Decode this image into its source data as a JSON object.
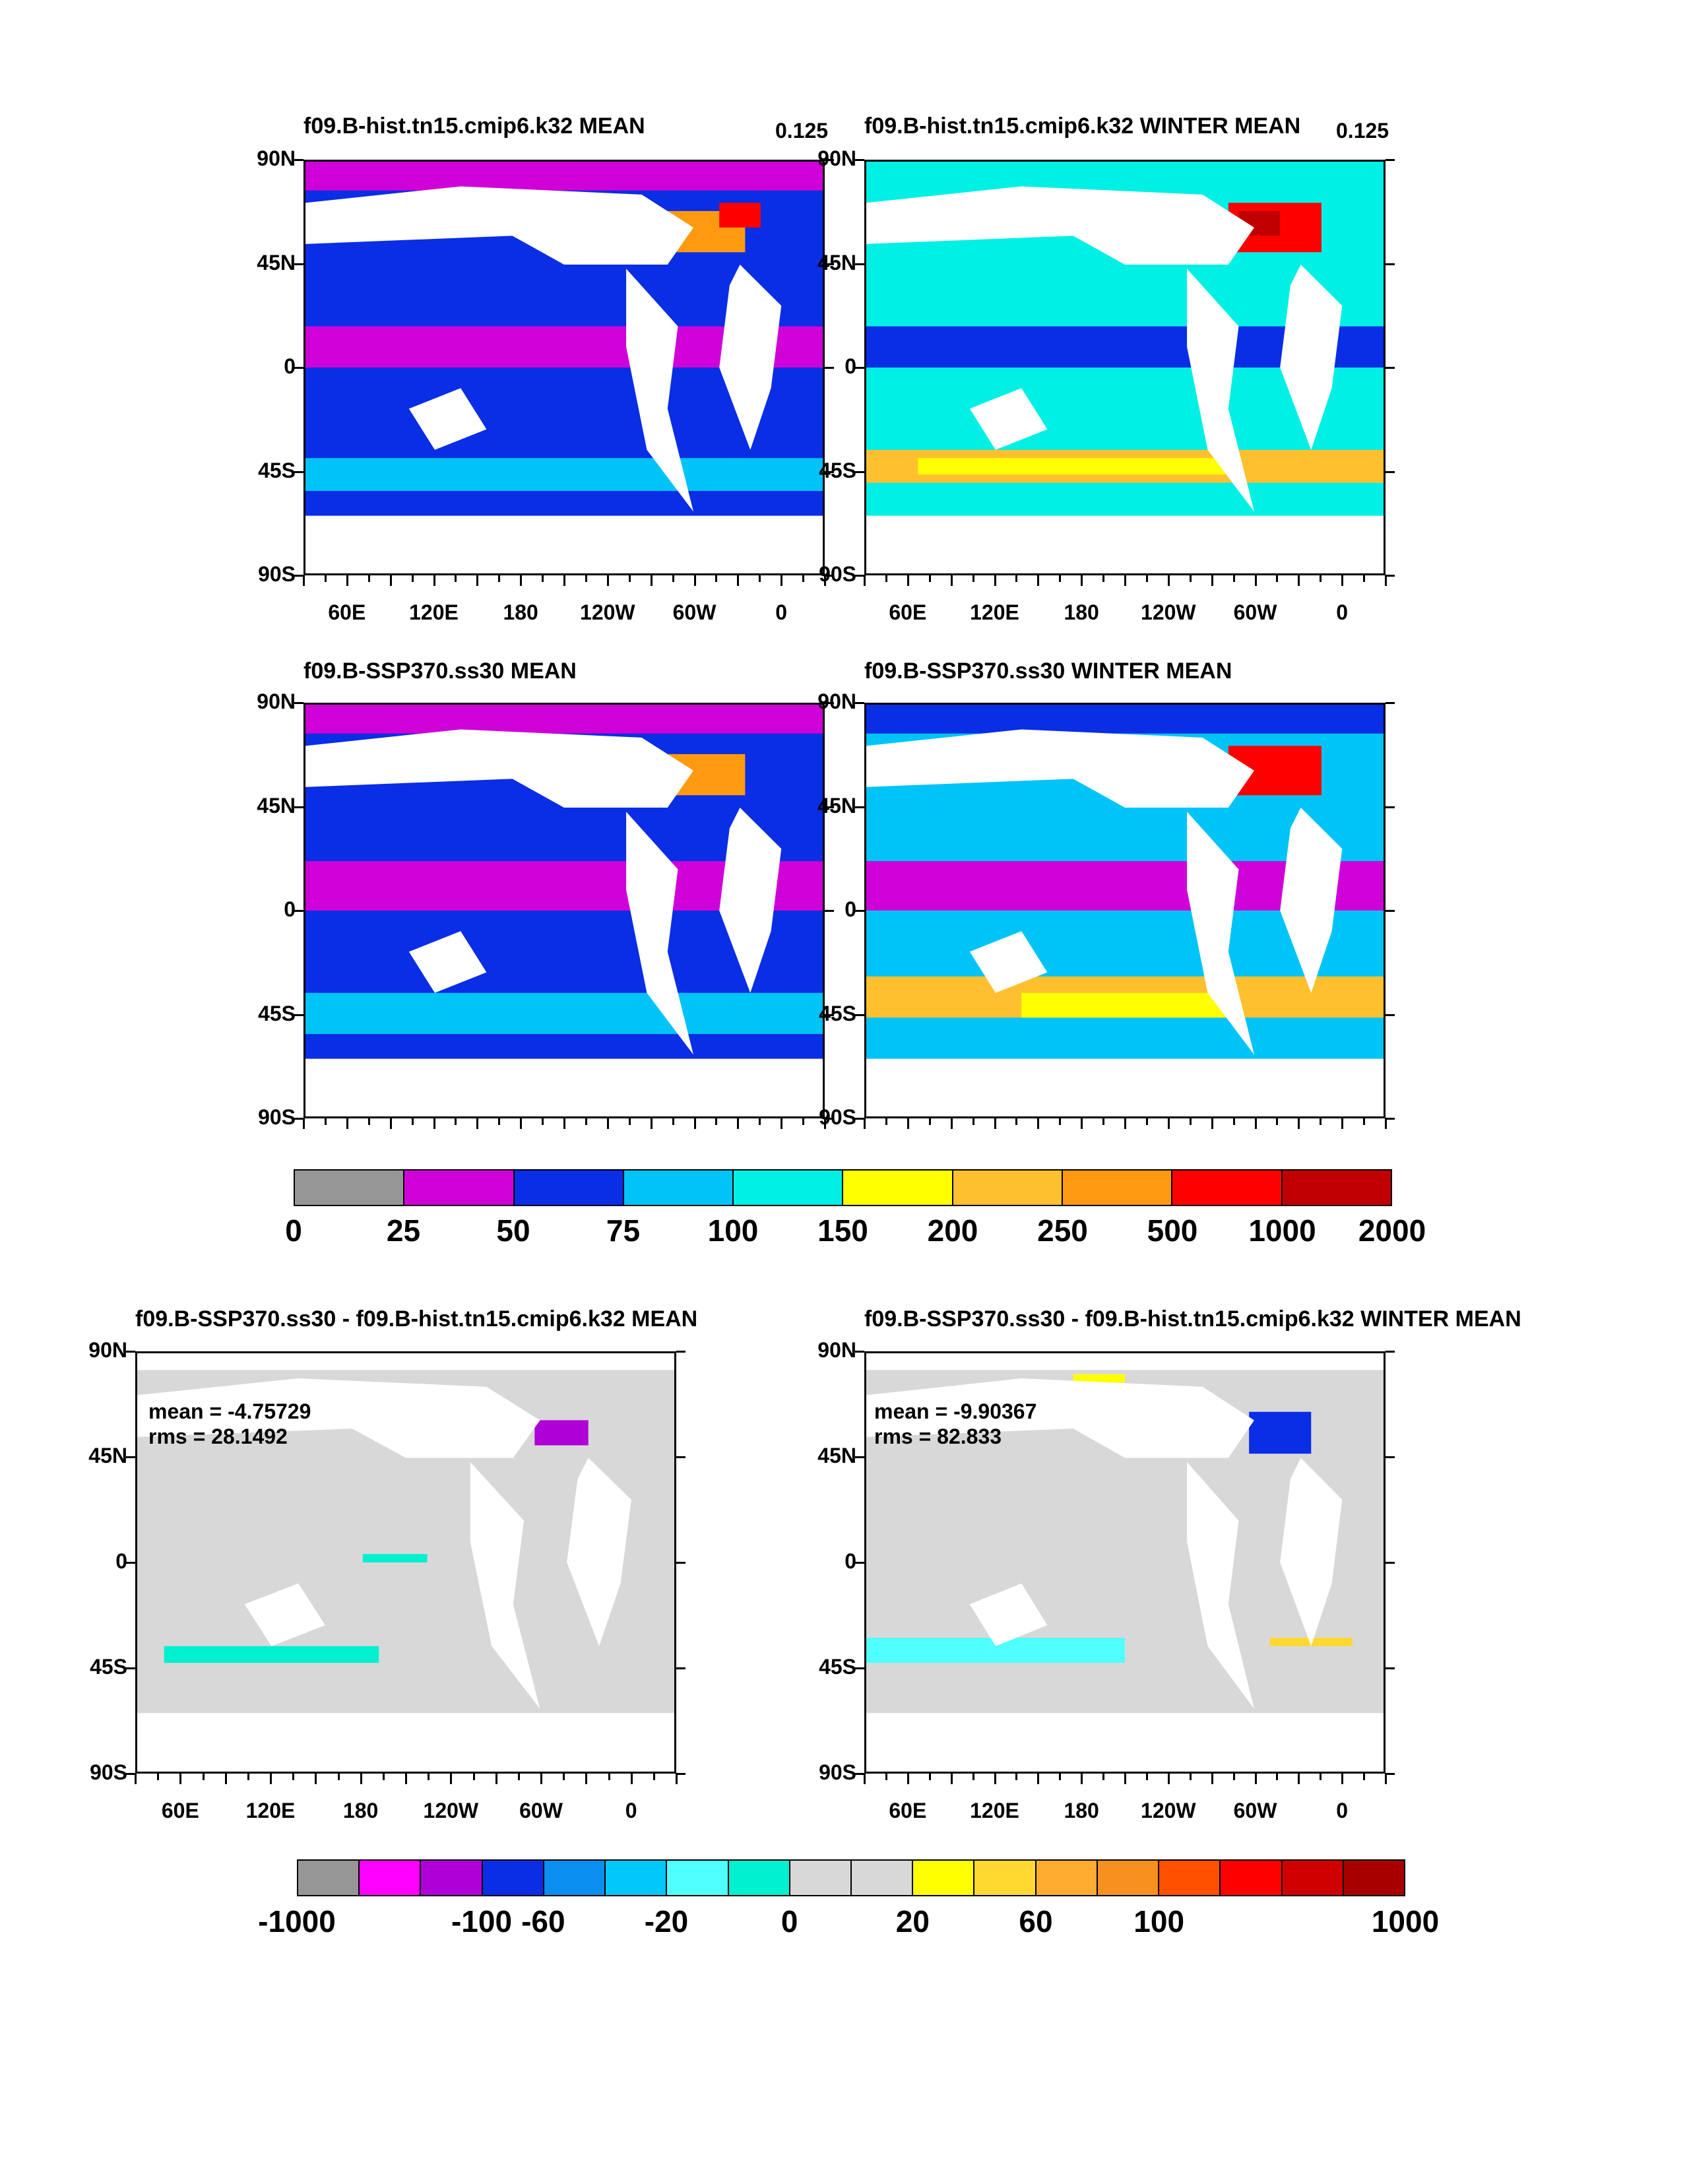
{
  "panels": [
    {
      "title": "f09.B-hist.tn15.cmip6.k32 MEAN",
      "corner": "0.125",
      "lon_labels_shown": true
    },
    {
      "title": "f09.B-hist.tn15.cmip6.k32 WINTER MEAN",
      "corner": "0.125",
      "lon_labels_shown": true
    },
    {
      "title": "f09.B-SSP370.ss30 MEAN",
      "corner": "",
      "lon_labels_shown": false
    },
    {
      "title": "f09.B-SSP370.ss30 WINTER MEAN",
      "corner": "",
      "lon_labels_shown": false
    },
    {
      "title": "f09.B-SSP370.ss30 - f09.B-hist.tn15.cmip6.k32 MEAN",
      "corner": "",
      "lon_labels_shown": true,
      "mean": "mean = -4.75729",
      "rms": "rms = 28.1492"
    },
    {
      "title": "f09.B-SSP370.ss30 - f09.B-hist.tn15.cmip6.k32 WINTER MEAN",
      "corner": "",
      "lon_labels_shown": true,
      "mean": "mean = -9.90367",
      "rms": "rms = 82.833"
    }
  ],
  "lat_labels": [
    "90N",
    "45N",
    "0",
    "45S",
    "90S"
  ],
  "lon_labels": [
    "60E",
    "120E",
    "180",
    "120W",
    "60W",
    "0"
  ],
  "colorbar_top": {
    "labels": [
      "0",
      "25",
      "50",
      "75",
      "100",
      "150",
      "200",
      "250",
      "500",
      "1000",
      "2000"
    ],
    "colors": [
      "#969696",
      "#d000d8",
      "#0a2de6",
      "#00c4f8",
      "#00f0e6",
      "#ffff00",
      "#ffc030",
      "#ff9a10",
      "#ff0000",
      "#c00000"
    ]
  },
  "colorbar_bottom": {
    "labels": [
      "-1000",
      "-100",
      "-60",
      "-20",
      "0",
      "20",
      "60",
      "100",
      "1000"
    ],
    "colors": [
      "#969696",
      "#ff00ff",
      "#b000d8",
      "#0a2de6",
      "#0a8ef0",
      "#00c8f8",
      "#50ffff",
      "#00f0d0",
      "#d8d8d8",
      "#d8d8d8",
      "#ffff00",
      "#ffd830",
      "#ffac30",
      "#f89020",
      "#ff5000",
      "#ff0000",
      "#d00000",
      "#a80000"
    ]
  }
}
